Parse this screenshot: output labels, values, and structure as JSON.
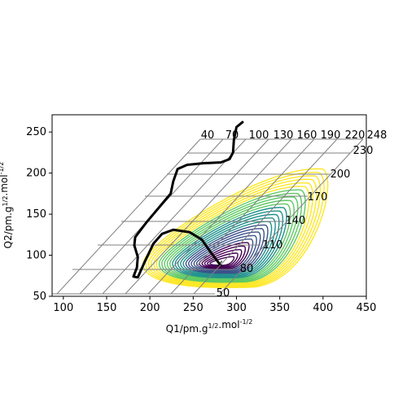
{
  "chart_data": {
    "type": "contour",
    "xlabel": "Q1/pm.g^{1/2}.mol^{-1/2}",
    "ylabel": "Q2/pm.g^{1/2}.mol^{-1/2}",
    "xlim": [
      87,
      450
    ],
    "ylim": [
      50,
      271
    ],
    "xticks": [
      100,
      150,
      200,
      250,
      300,
      350,
      400,
      450
    ],
    "yticks": [
      50,
      100,
      150,
      200,
      250
    ],
    "grid": true,
    "contour_levels": [
      50,
      80,
      110,
      140,
      170,
      200,
      230
    ],
    "top_labels": [
      "40",
      "70",
      "100",
      "130",
      "160",
      "190",
      "220",
      "248"
    ],
    "minimum_marker": {
      "x": 281,
      "y": 90,
      "label": "x",
      "color": "#ff0000"
    },
    "trajectory": {
      "color": "#000000",
      "points": [
        [
          307,
          262
        ],
        [
          300,
          256
        ],
        [
          297,
          240
        ],
        [
          296,
          225
        ],
        [
          292,
          217
        ],
        [
          282,
          213
        ],
        [
          262,
          212
        ],
        [
          243,
          210
        ],
        [
          232,
          205
        ],
        [
          227,
          190
        ],
        [
          224,
          175
        ],
        [
          212,
          160
        ],
        [
          196,
          140
        ],
        [
          183,
          122
        ],
        [
          182,
          112
        ],
        [
          186,
          98
        ],
        [
          185,
          85
        ],
        [
          181,
          74
        ],
        [
          186,
          73
        ],
        [
          194,
          92
        ],
        [
          204,
          114
        ],
        [
          214,
          126
        ],
        [
          227,
          131
        ],
        [
          246,
          128
        ],
        [
          260,
          119
        ],
        [
          270,
          104
        ],
        [
          280,
          90
        ]
      ]
    },
    "colormap": [
      "#440154",
      "#3b528b",
      "#21918c",
      "#5ec962",
      "#fde725"
    ]
  }
}
